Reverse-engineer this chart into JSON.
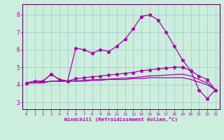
{
  "background_color": "#cceedd",
  "grid_color": "#aacccc",
  "line_color": "#aa00aa",
  "spine_color": "#660066",
  "xlabel": "Windchill (Refroidissement éolien,°C)",
  "ylabel_ticks": [
    3,
    4,
    5,
    6,
    7,
    8
  ],
  "xlim": [
    -0.5,
    23.5
  ],
  "ylim": [
    2.6,
    8.6
  ],
  "x": [
    0,
    1,
    2,
    3,
    4,
    5,
    6,
    7,
    8,
    9,
    10,
    11,
    12,
    13,
    14,
    15,
    16,
    17,
    18,
    19,
    20,
    21,
    22,
    23
  ],
  "line1": [
    4.1,
    4.2,
    4.2,
    4.6,
    4.3,
    4.2,
    6.1,
    6.0,
    5.8,
    6.0,
    5.9,
    6.2,
    6.6,
    7.2,
    7.9,
    8.0,
    7.7,
    7.0,
    6.2,
    5.4,
    4.8,
    3.7,
    3.2,
    3.7
  ],
  "line2": [
    4.1,
    4.2,
    4.2,
    4.6,
    4.3,
    4.2,
    4.35,
    4.4,
    4.45,
    4.5,
    4.55,
    4.6,
    4.65,
    4.7,
    4.8,
    4.85,
    4.9,
    4.95,
    5.0,
    5.0,
    4.8,
    4.5,
    4.3,
    3.7
  ],
  "line3": [
    4.1,
    4.1,
    4.15,
    4.2,
    4.2,
    4.2,
    4.2,
    4.2,
    4.25,
    4.25,
    4.3,
    4.3,
    4.3,
    4.35,
    4.35,
    4.4,
    4.4,
    4.4,
    4.4,
    4.4,
    4.3,
    4.15,
    4.0,
    3.7
  ],
  "line4": [
    4.1,
    4.1,
    4.1,
    4.2,
    4.2,
    4.2,
    4.22,
    4.25,
    4.28,
    4.3,
    4.32,
    4.35,
    4.38,
    4.4,
    4.45,
    4.5,
    4.52,
    4.55,
    4.58,
    4.6,
    4.5,
    4.3,
    4.1,
    3.7
  ],
  "marker": "*",
  "markersize": 3.5,
  "linewidth": 0.9
}
